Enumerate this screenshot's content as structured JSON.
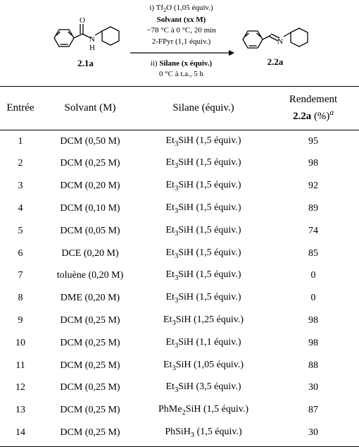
{
  "scheme": {
    "starting_label": "2.1a",
    "product_label": "2.2a",
    "conditions_top": [
      {
        "text": "i) Tf",
        "sub": "2",
        "tail": "O (1,05 équiv.)",
        "bold": false
      },
      {
        "text": "Solvant (xx M)",
        "bold": true
      },
      {
        "text": "−78 °C à 0 °C, 20 min",
        "bold": false
      },
      {
        "text": "2-FPyr (1,1 équiv.)",
        "bold": false
      }
    ],
    "conditions_bottom": [
      {
        "text": "ii) ",
        "bold_part": "Silane (x équiv.)"
      },
      {
        "text": "0 °C à t.a., 5 h",
        "bold": false
      }
    ],
    "arrow_color": "#000000"
  },
  "table": {
    "headers": {
      "entry": "Entrée",
      "solvent": "Solvant (M)",
      "silane": "Silane (équiv.)",
      "yield_line1": "Rendement",
      "yield_compound": "2.2a",
      "yield_tail": " (%)"
    },
    "rows": [
      {
        "entry": "1",
        "solvent": "DCM (0,50 M)",
        "silane_pre": "Et",
        "silane_sub": "3",
        "silane_post": "SiH (1,5 équiv.)",
        "yield": "95"
      },
      {
        "entry": "2",
        "solvent": "DCM (0,25 M)",
        "silane_pre": "Et",
        "silane_sub": "3",
        "silane_post": "SiH (1,5 équiv.)",
        "yield": "98"
      },
      {
        "entry": "3",
        "solvent": "DCM (0,20 M)",
        "silane_pre": "Et",
        "silane_sub": "3",
        "silane_post": "SiH (1,5 équiv.)",
        "yield": "92"
      },
      {
        "entry": "4",
        "solvent": "DCM (0,10 M)",
        "silane_pre": "Et",
        "silane_sub": "3",
        "silane_post": "SiH (1,5 équiv.)",
        "yield": "89"
      },
      {
        "entry": "5",
        "solvent": "DCM (0,05 M)",
        "silane_pre": "Et",
        "silane_sub": "3",
        "silane_post": "SiH (1,5 équiv.)",
        "yield": "74"
      },
      {
        "entry": "6",
        "solvent": "DCE (0,20 M)",
        "silane_pre": "Et",
        "silane_sub": "3",
        "silane_post": "SiH (1,5 équiv.)",
        "yield": "85"
      },
      {
        "entry": "7",
        "solvent": "toluène (0,20 M)",
        "silane_pre": "Et",
        "silane_sub": "3",
        "silane_post": "SiH (1,5 équiv.)",
        "yield": "0"
      },
      {
        "entry": "8",
        "solvent": "DME (0,20 M)",
        "silane_pre": "Et",
        "silane_sub": "3",
        "silane_post": "SiH (1,5 équiv.)",
        "yield": "0"
      },
      {
        "entry": "9",
        "solvent": "DCM (0,25 M)",
        "silane_pre": "Et",
        "silane_sub": "3",
        "silane_post": "SiH (1,25 équiv.)",
        "yield": "98"
      },
      {
        "entry": "10",
        "solvent": "DCM (0,25 M)",
        "silane_pre": "Et",
        "silane_sub": "3",
        "silane_post": "SiH (1,1 équiv.)",
        "yield": "98"
      },
      {
        "entry": "11",
        "solvent": "DCM (0,25 M)",
        "silane_pre": "Et",
        "silane_sub": "3",
        "silane_post": "SiH (1,05 équiv.)",
        "yield": "88"
      },
      {
        "entry": "12",
        "solvent": "DCM (0,25 M)",
        "silane_pre": "Et",
        "silane_sub": "3",
        "silane_post": "SiH (3,5 équiv.)",
        "yield": "30"
      },
      {
        "entry": "13",
        "solvent": "DCM (0,25 M)",
        "silane_pre": "PhMe",
        "silane_sub": "2",
        "silane_post": "SiH (1,5 équiv.)",
        "yield": "87"
      },
      {
        "entry": "14",
        "solvent": "DCM (0,25 M)",
        "silane_pre": "PhSiH",
        "silane_sub": "3",
        "silane_post": " (1,5 équiv.)",
        "yield": "30"
      }
    ],
    "col_widths": [
      "58px",
      "140px",
      "180px",
      "auto"
    ]
  },
  "colors": {
    "text": "#000000",
    "background": "#ffffff",
    "border": "#000000"
  }
}
